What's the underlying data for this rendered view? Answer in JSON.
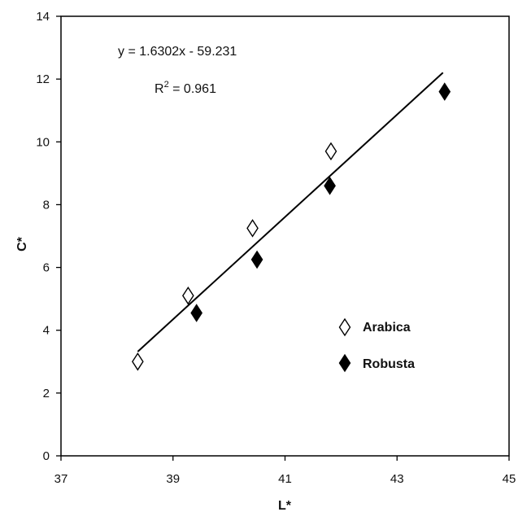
{
  "chart_data": {
    "type": "scatter",
    "xlabel": "L*",
    "ylabel": "C*",
    "xlim": [
      37,
      45
    ],
    "ylim": [
      0,
      14
    ],
    "x_ticks": [
      37,
      39,
      41,
      43,
      45
    ],
    "y_ticks": [
      0,
      2,
      4,
      6,
      8,
      10,
      12,
      14
    ],
    "grid": false,
    "legend_position": "right-middle",
    "series": [
      {
        "name": "Arabica",
        "marker": "open-diamond",
        "color": "#000000",
        "points": [
          {
            "x": 38.37,
            "y": 3.0
          },
          {
            "x": 39.27,
            "y": 5.1
          },
          {
            "x": 40.42,
            "y": 7.25
          },
          {
            "x": 41.82,
            "y": 9.7
          }
        ]
      },
      {
        "name": "Robusta",
        "marker": "filled-diamond",
        "color": "#000000",
        "points": [
          {
            "x": 39.42,
            "y": 4.55
          },
          {
            "x": 40.5,
            "y": 6.25
          },
          {
            "x": 41.8,
            "y": 8.6
          },
          {
            "x": 43.85,
            "y": 11.6
          }
        ]
      }
    ],
    "trendline": {
      "slope": 1.6302,
      "intercept": -59.231,
      "x_range": [
        38.37,
        43.82
      ]
    },
    "annotations": {
      "equation": "y = 1.6302x - 59.231",
      "r2_prefix": "R",
      "r2_sup": "2",
      "r2_suffix": " = 0.961"
    }
  }
}
